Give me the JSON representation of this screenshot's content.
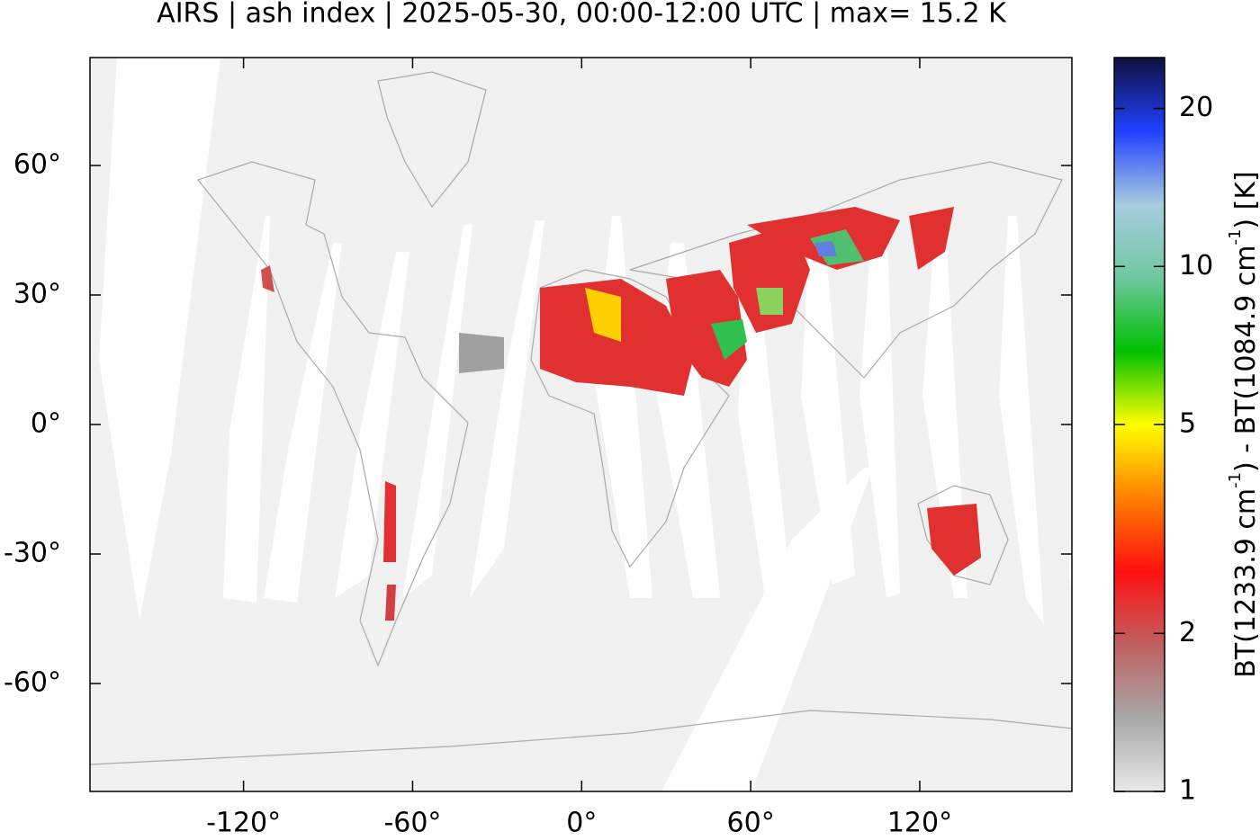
{
  "chart_data": {
    "type": "map",
    "title": "AIRS | ash index | 2025-05-30, 00:00-12:00 UTC | max= 15.2 K",
    "xlim": [
      -174.5,
      174
    ],
    "ylim": [
      -85,
      85
    ],
    "xticks": [
      {
        "value": -120,
        "label": "-120°"
      },
      {
        "value": -60,
        "label": "-60°"
      },
      {
        "value": 0,
        "label": "0°"
      },
      {
        "value": 60,
        "label": "60°"
      },
      {
        "value": 120,
        "label": "120°"
      }
    ],
    "yticks": [
      {
        "value": 60,
        "label": "60°"
      },
      {
        "value": 30,
        "label": "30°"
      },
      {
        "value": 0,
        "label": "0°"
      },
      {
        "value": -30,
        "label": "-30°"
      },
      {
        "value": -60,
        "label": "-60°"
      }
    ],
    "colorbar": {
      "label_parts": [
        "BT(1233.9 cm",
        "-1",
        ") - BT(1084.9 cm",
        "-1",
        ") [K]"
      ],
      "clim": [
        1,
        25
      ],
      "log_scale": true,
      "ticks": [
        1,
        2,
        5,
        10,
        20
      ],
      "colormap": [
        "#e8e8e8",
        "#a8a8a8",
        "#c06060",
        "#ff1010",
        "#ff8000",
        "#ffff00",
        "#00c000",
        "#70c8a0",
        "#a8cce0",
        "#2040ff",
        "#101040"
      ]
    }
  }
}
